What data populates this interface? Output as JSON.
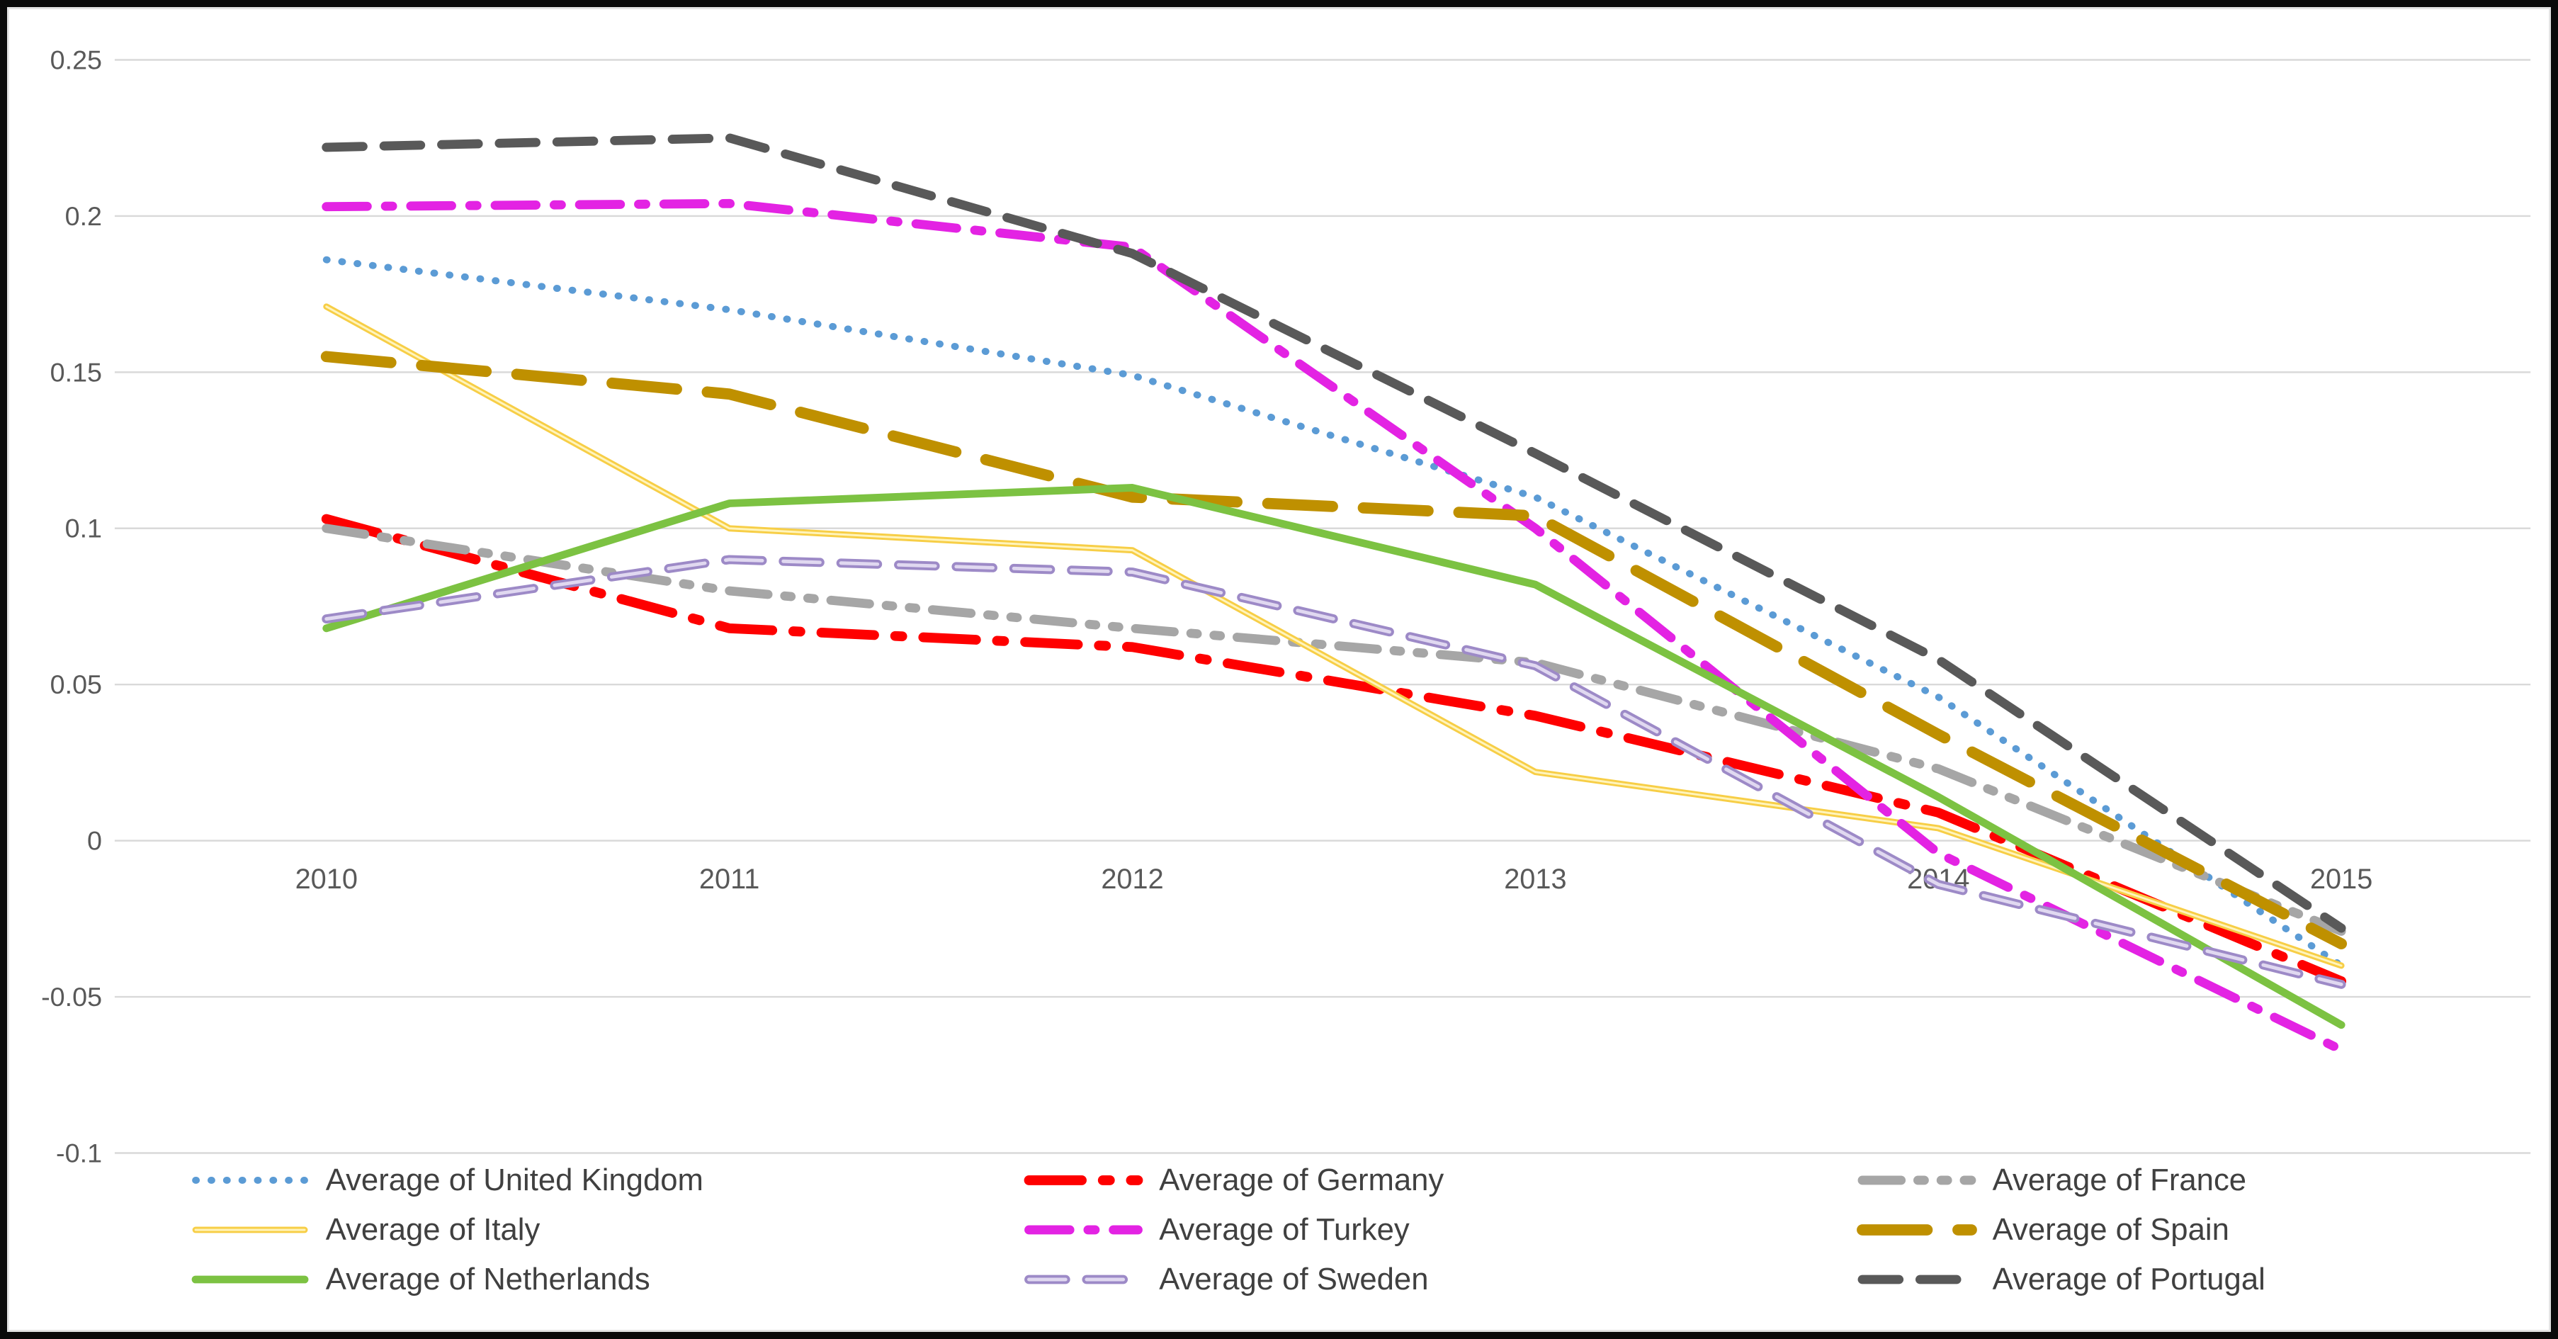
{
  "chart_data": {
    "type": "line",
    "title": "",
    "x": [
      2010,
      2011,
      2012,
      2013,
      2014,
      2015
    ],
    "x_tick_labels": [
      "2010",
      "2011",
      "2012",
      "2013",
      "2014",
      "2015"
    ],
    "y_ticks": [
      0.25,
      0.2,
      0.15,
      0.1,
      0.05,
      0,
      -0.05,
      -0.1
    ],
    "y_tick_labels": [
      "0.25",
      "0.2",
      "0.15",
      "0.1",
      "0.05",
      "0",
      "-0.05",
      "-0.1"
    ],
    "ylim": [
      -0.13,
      0.26
    ],
    "grid": true,
    "gridline_color": "#d9d9d9",
    "axis_label_color": "#595959",
    "legend_text_color": "#404040",
    "legend_position": "bottom",
    "series": [
      {
        "name": "Average of United Kingdom",
        "color": "#5B9BD5",
        "style": "dotted",
        "width": 10,
        "values": [
          0.186,
          0.17,
          0.149,
          0.11,
          0.046,
          -0.04
        ]
      },
      {
        "name": "Average of Germany",
        "color": "#FE0000",
        "style": "dash-dot-long",
        "width": 14,
        "values": [
          0.103,
          0.068,
          0.062,
          0.04,
          0.009,
          -0.045
        ]
      },
      {
        "name": "Average of France",
        "color": "#A6A6A6",
        "style": "dash-dot-dot",
        "width": 13,
        "values": [
          0.1,
          0.08,
          0.068,
          0.057,
          0.023,
          -0.029
        ]
      },
      {
        "name": "Average of Italy",
        "color": "#F7CE46",
        "style": "solid",
        "width": 9,
        "core": "#FFF4BC",
        "values": [
          0.171,
          0.1,
          0.093,
          0.022,
          0.004,
          -0.04
        ]
      },
      {
        "name": "Average of Turkey",
        "color": "#E323E3",
        "style": "dash-dot",
        "width": 13,
        "values": [
          0.203,
          0.204,
          0.19,
          0.1,
          -0.004,
          -0.067
        ]
      },
      {
        "name": "Average of Spain",
        "color": "#BF9000",
        "style": "long-dash",
        "width": 16,
        "values": [
          0.155,
          0.143,
          0.11,
          0.104,
          0.034,
          -0.033
        ]
      },
      {
        "name": "Average of Netherlands",
        "color": "#7CC242",
        "style": "solid",
        "width": 11,
        "values": [
          0.068,
          0.108,
          0.113,
          0.082,
          0.014,
          -0.059
        ]
      },
      {
        "name": "Average of Sweden",
        "color": "#9D8AC7",
        "style": "dashed",
        "width": 13,
        "core": "#E0D8F0",
        "values": [
          0.071,
          0.09,
          0.086,
          0.056,
          -0.014,
          -0.046
        ]
      },
      {
        "name": "Average of Portugal",
        "color": "#595959",
        "style": "dashed",
        "width": 13,
        "values": [
          0.222,
          0.225,
          0.188,
          0.124,
          0.058,
          -0.028
        ]
      }
    ],
    "legend_columns": [
      [
        "Average of United Kingdom",
        "Average of Italy",
        "Average of Netherlands"
      ],
      [
        "Average of Germany",
        "Average of Turkey",
        "Average of Sweden"
      ],
      [
        "Average of France",
        "Average of Spain",
        "Average of Portugal"
      ]
    ]
  }
}
